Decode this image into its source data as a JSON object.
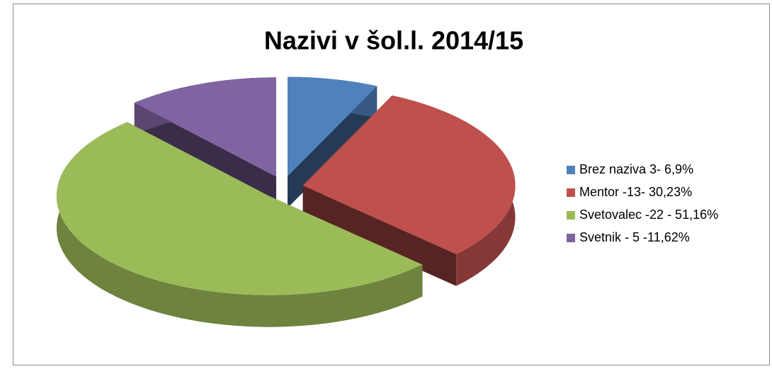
{
  "chart_data": {
    "type": "pie",
    "title": "Nazivi v šol.l. 2014/15",
    "categories": [
      "Brez naziva 3- 6,9%",
      "Mentor -13- 30,23%",
      "Svetovalec -22 - 51,16%",
      "Svetnik - 5 -11,62%"
    ],
    "values": [
      6.9,
      30.23,
      51.16,
      11.62
    ],
    "colors": [
      "#4f81bd",
      "#c0504d",
      "#9bbb59",
      "#8064a2"
    ],
    "legend": "right"
  }
}
